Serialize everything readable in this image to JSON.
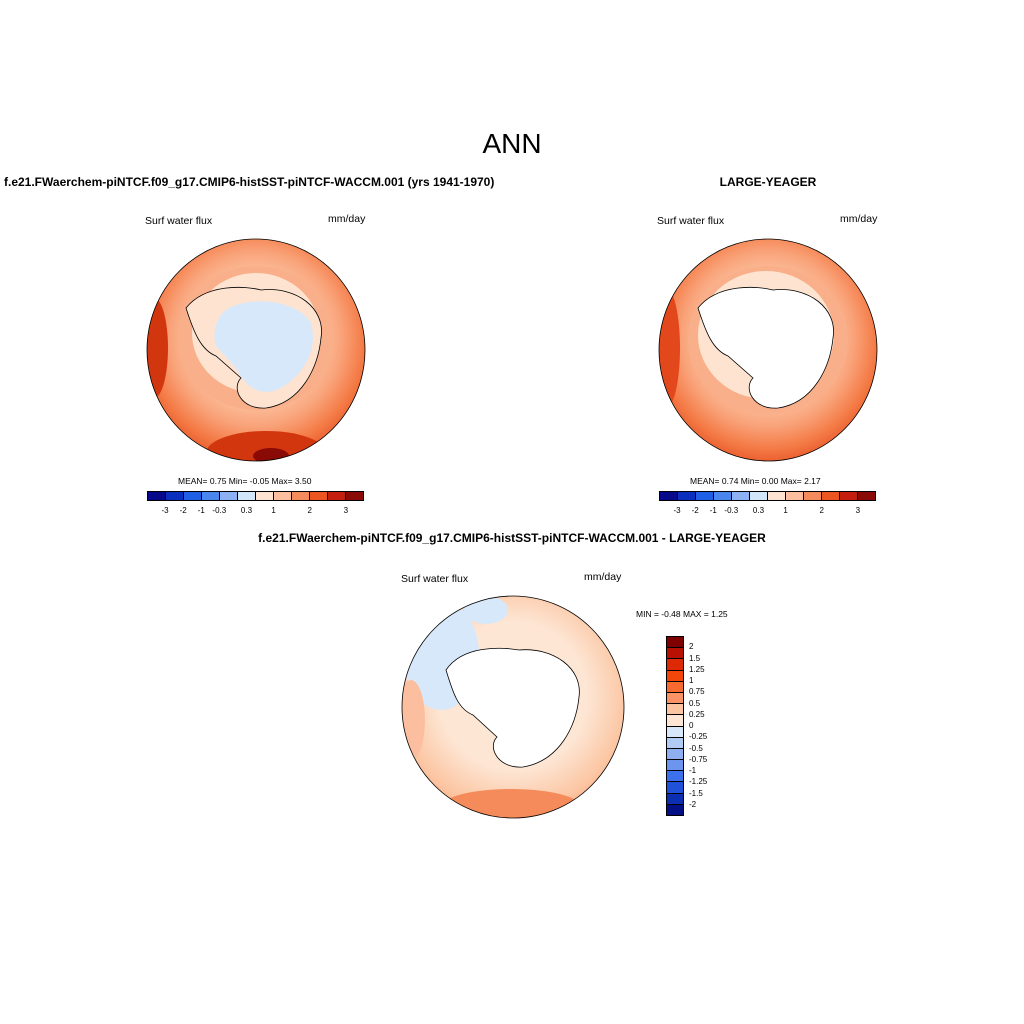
{
  "figure_title": "ANN",
  "panels": [
    {
      "title": "f.e21.FWaerchem-piNTCF.f09_g17.CMIP6-histSST-piNTCF-WACCM.001 (yrs 1941-1970)",
      "left_label": "Surf water flux",
      "right_label": "mm/day",
      "stats": "MEAN=   0.75  Min=  -0.05  Max=   3.50",
      "colorbar_ticks": [
        "-3",
        "-2",
        "-1",
        "-0.3",
        "0.3",
        "1",
        "2",
        "3"
      ]
    },
    {
      "title": "LARGE-YEAGER",
      "left_label": "Surf water flux",
      "right_label": "mm/day",
      "stats": "MEAN=   0.74  Min=   0.00  Max=   2.17",
      "colorbar_ticks": [
        "-3",
        "-2",
        "-1",
        "-0.3",
        "0.3",
        "1",
        "2",
        "3"
      ]
    },
    {
      "title": "f.e21.FWaerchem-piNTCF.f09_g17.CMIP6-histSST-piNTCF-WACCM.001 - LARGE-YEAGER",
      "left_label": "Surf water flux",
      "right_label": "mm/day",
      "stats": "MIN =  -0.48 MAX =   1.25",
      "colorbar_ticks": [
        "2",
        "1.5",
        "1.25",
        "1",
        "0.75",
        "0.5",
        "0.25",
        "0",
        "-0.25",
        "-0.5",
        "-0.75",
        "-1",
        "-1.25",
        "-1.5",
        "-2"
      ]
    }
  ],
  "colors": {
    "colorbar_12": [
      "#08088a",
      "#0a2fbf",
      "#1f5fe6",
      "#4a86f0",
      "#8cb0f2",
      "#d2e6f9",
      "#fde3d0",
      "#fbbfa0",
      "#f58a5a",
      "#ed5520",
      "#c41f0e",
      "#8a0a05"
    ],
    "colorbar_16": [
      "#7f0000",
      "#b81002",
      "#dd2a05",
      "#f2460a",
      "#f76a30",
      "#fa9366",
      "#fcc5a2",
      "#fde6d4",
      "#d6e8fa",
      "#b0cbf4",
      "#8eb0f1",
      "#6d94ee",
      "#3d71ec",
      "#1f52d8",
      "#0c2fb2",
      "#040e85"
    ],
    "land": "#ffffff",
    "ocean_low": "#fde6d4",
    "ocean_mid": "#fbbfa0",
    "ocean_high": "#f58a5a",
    "ocean_max": "#e2481c",
    "ice_neg": "#d6e8fa"
  }
}
